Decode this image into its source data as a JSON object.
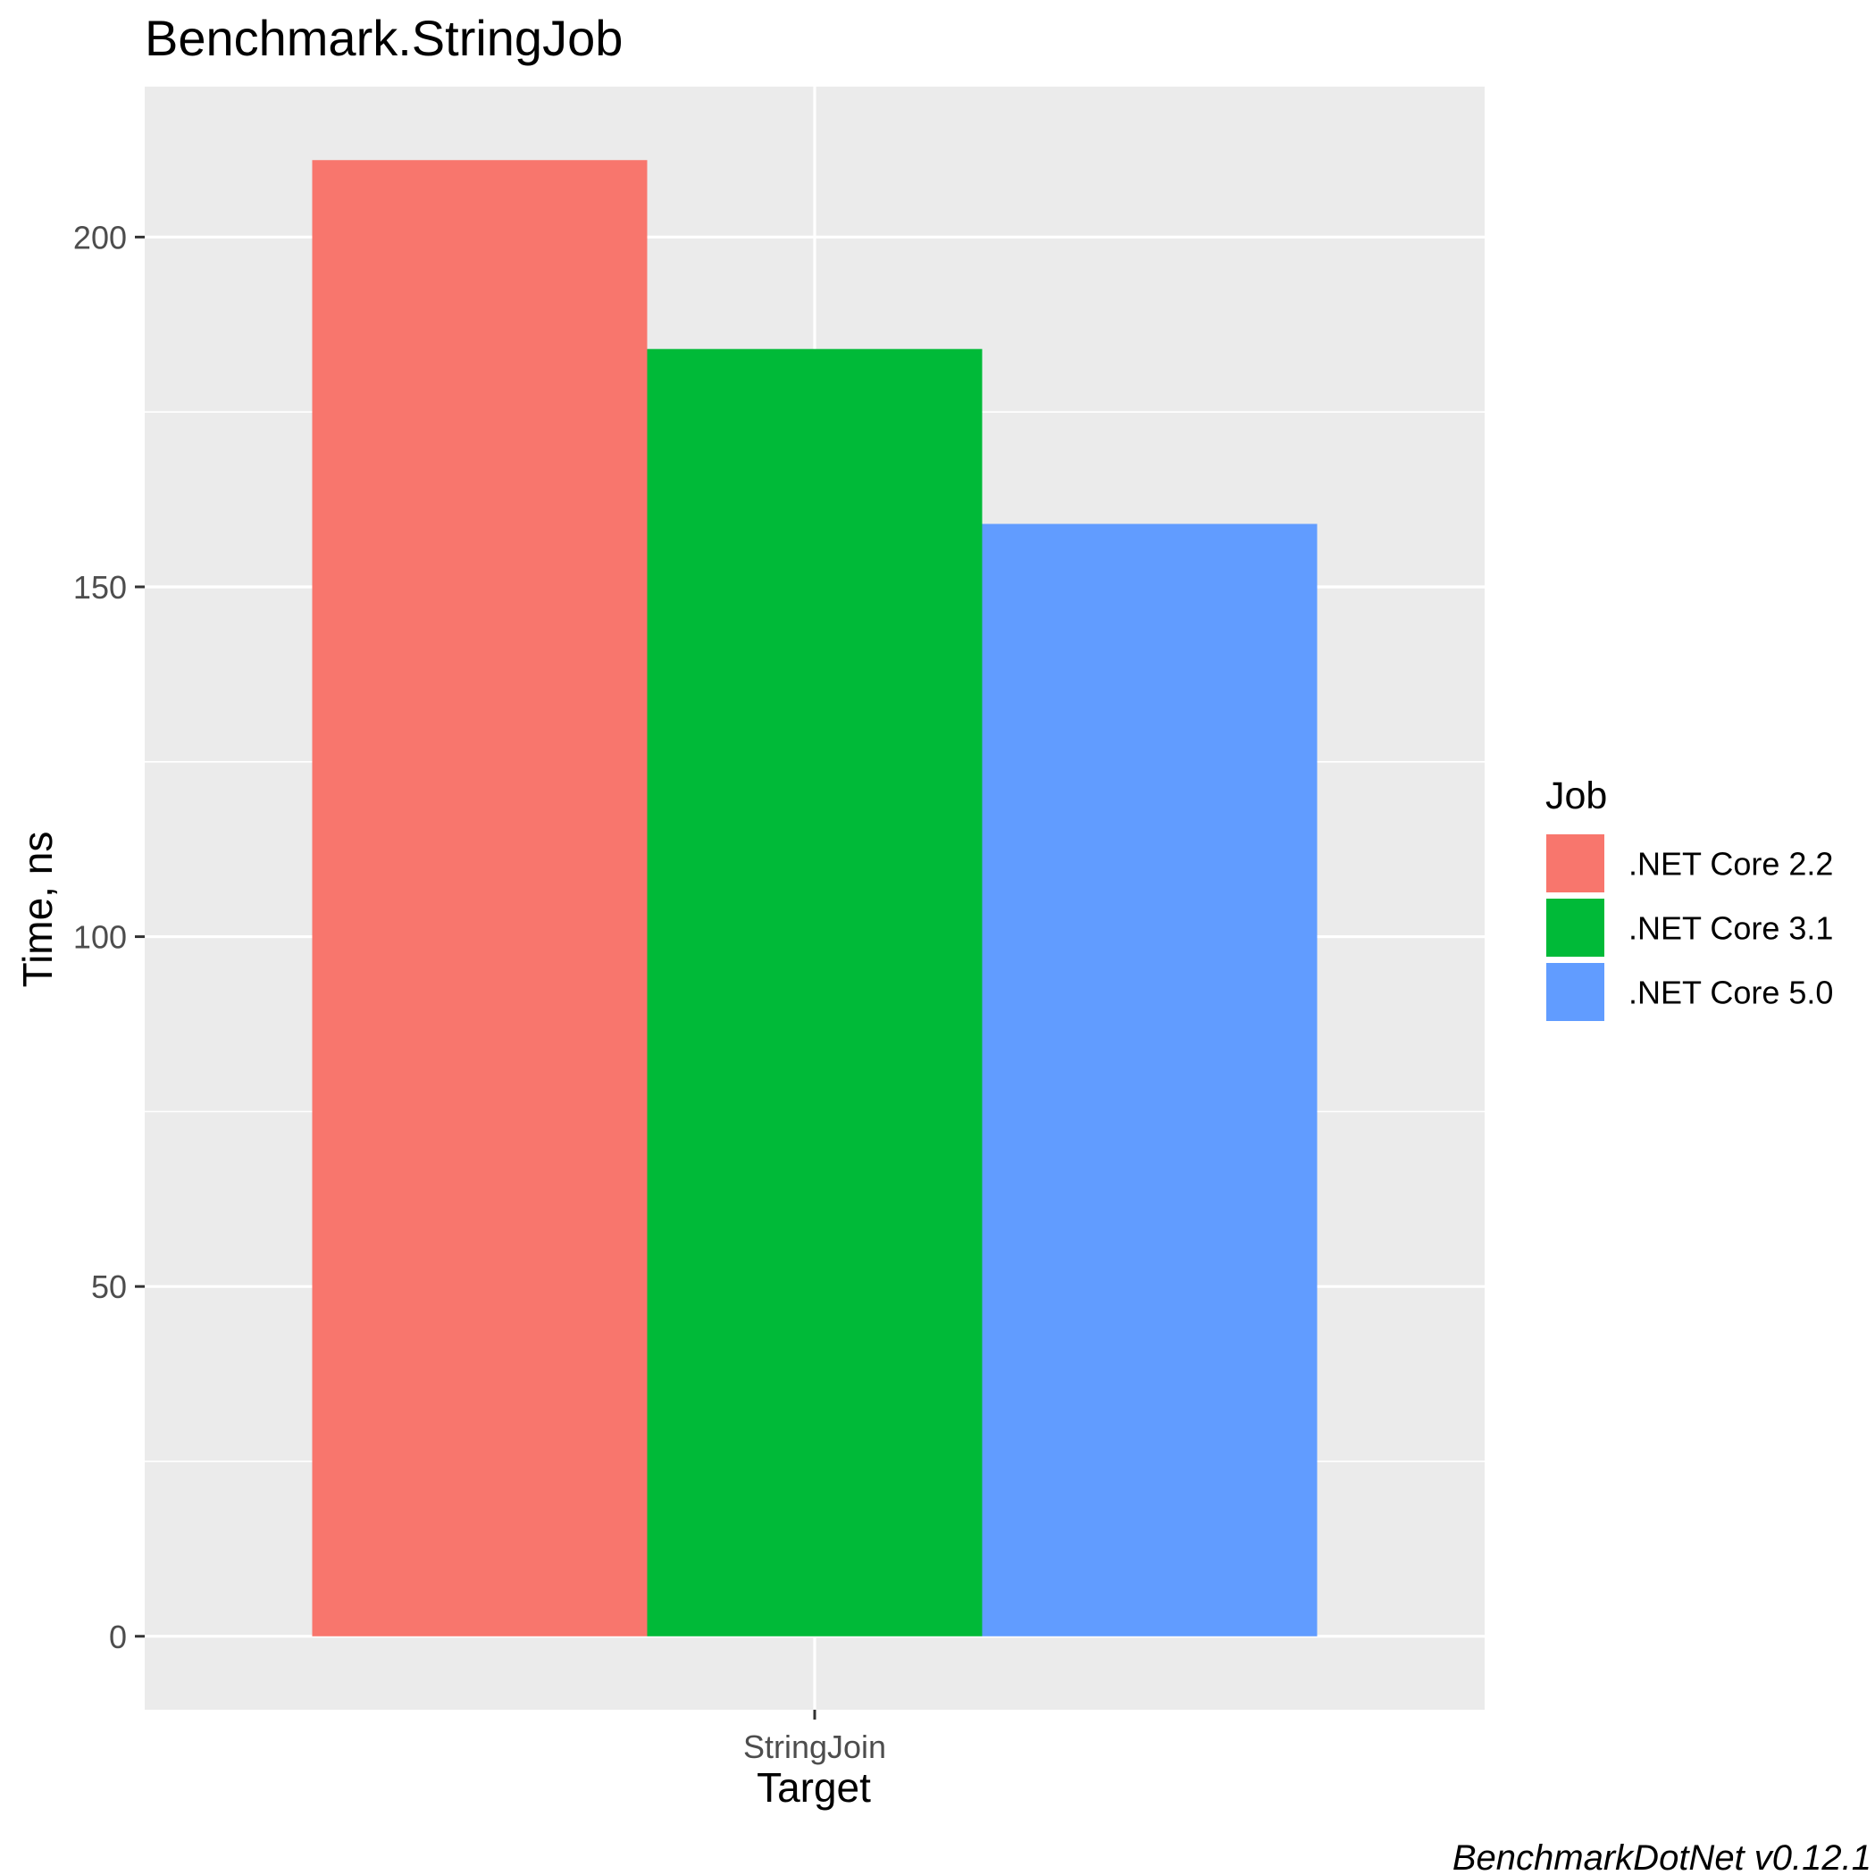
{
  "chart_data": {
    "type": "bar",
    "title": "Benchmark.StringJob",
    "xlabel": "Target",
    "ylabel": "Time, ns",
    "categories": [
      "StringJoin"
    ],
    "series": [
      {
        "name": ".NET Core 2.2",
        "values": [
          211
        ],
        "color": "#F8766D"
      },
      {
        "name": ".NET Core 3.1",
        "values": [
          184
        ],
        "color": "#00BA38"
      },
      {
        "name": ".NET Core 5.0",
        "values": [
          159
        ],
        "color": "#619CFF"
      }
    ],
    "ylim": [
      -10.5,
      221.5
    ],
    "yticks": [
      0,
      50,
      100,
      150,
      200
    ],
    "grid": true,
    "panel_background": "#EBEBEB",
    "legend": {
      "title": "Job",
      "position": "right"
    },
    "caption": "BenchmarkDotNet v0.12.1"
  }
}
